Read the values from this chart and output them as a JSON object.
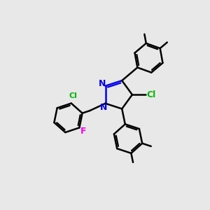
{
  "background_color": "#e8e8e8",
  "bond_color": "#000000",
  "bond_width": 1.8,
  "N_color": "#0000ff",
  "Cl_color": "#00bb00",
  "F_color": "#ff00ff",
  "figsize": [
    3.0,
    3.0
  ],
  "dpi": 100,
  "xlim": [
    0,
    10
  ],
  "ylim": [
    0,
    10
  ]
}
